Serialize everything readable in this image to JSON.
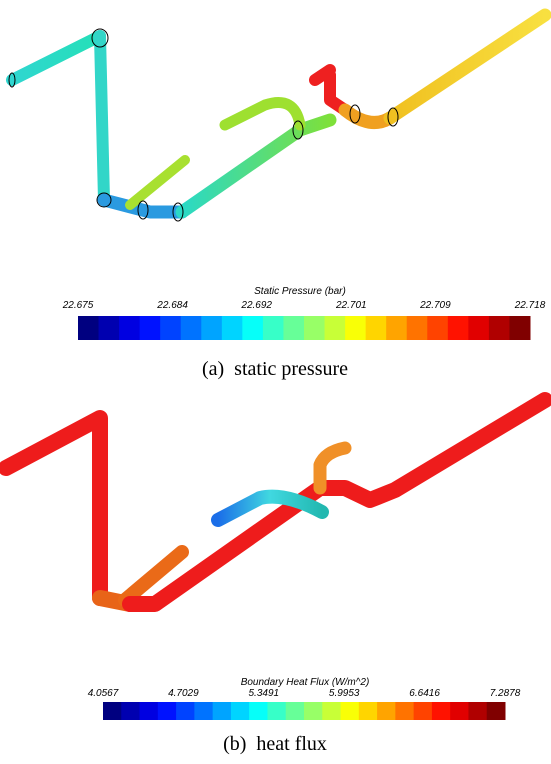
{
  "panels": [
    {
      "colorbar": {
        "title": "Static Pressure (bar)",
        "ticks": [
          22.675,
          22.684,
          22.692,
          22.701,
          22.709,
          22.718
        ]
      },
      "caption": "(a)  static pressure"
    },
    {
      "colorbar": {
        "title": "Boundary Heat Flux (W/m^2)",
        "ticks": [
          4.0567,
          4.7029,
          5.3491,
          5.9953,
          6.6416,
          7.2878
        ]
      },
      "caption": "(b)  heat flux"
    }
  ]
}
